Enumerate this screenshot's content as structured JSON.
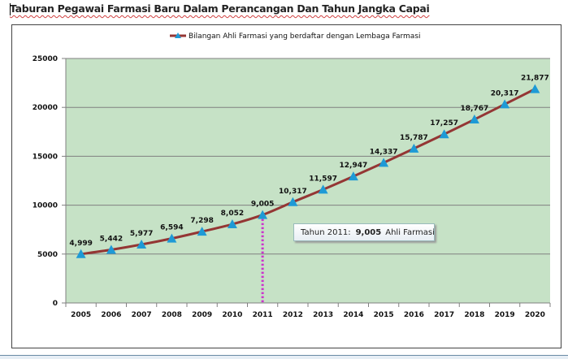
{
  "document": {
    "title": "Taburan Pegawai Farmasi Baru Dalam Perancangan Dan Tahun Jangka Capai"
  },
  "colors": {
    "plot_bg": "#c6e2c6",
    "line": "#943634",
    "marker": "#1e9ad6",
    "grid": "#808080",
    "dashed_marker_line": "#cc33cc"
  },
  "callout": {
    "prefix": "Tahun 2011:",
    "value": "9,005",
    "suffix": "Ahli Farmasi"
  },
  "chart_data": {
    "type": "line",
    "title": "",
    "xlabel": "",
    "ylabel": "",
    "categories": [
      "2005",
      "2006",
      "2007",
      "2008",
      "2009",
      "2010",
      "2011",
      "2012",
      "2013",
      "2014",
      "2015",
      "2016",
      "2017",
      "2018",
      "2019",
      "2020"
    ],
    "series": [
      {
        "name": "Bilangan Ahli Farmasi yang berdaftar dengan Lembaga Farmasi",
        "values": [
          4999,
          5442,
          5977,
          6594,
          7298,
          8052,
          9005,
          10317,
          11597,
          12947,
          14337,
          15787,
          17257,
          18767,
          20317,
          21877
        ],
        "labels": [
          "4,999",
          "5,442",
          "5,977",
          "6,594",
          "7,298",
          "8,052",
          "9,005",
          "10,317",
          "11,597",
          "12,947",
          "14,337",
          "15,787",
          "17,257",
          "18,767",
          "20,317",
          "21,877"
        ],
        "marker": "triangle"
      }
    ],
    "ylim": [
      0,
      25000
    ],
    "yticks": [
      0,
      5000,
      10000,
      15000,
      20000,
      25000
    ],
    "ytick_labels": [
      "0",
      "5000",
      "10000",
      "15000",
      "20000",
      "25000"
    ],
    "grid": true,
    "legend": "top",
    "highlight": {
      "category": "2011",
      "value": 9005
    }
  }
}
